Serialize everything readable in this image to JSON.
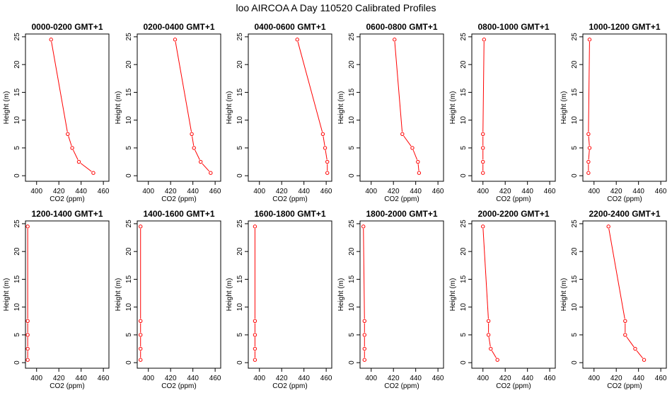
{
  "main_title": "loo AIRCOA A  Day 110520  Calibrated Profiles",
  "colors": {
    "line": "#ff0000",
    "axis": "#000000"
  },
  "chart_data": [
    {
      "type": "line",
      "title": "0000-0200 GMT+1",
      "xlabel": "CO2 (ppm)",
      "ylabel": "Height (m)",
      "xlim": [
        390,
        465
      ],
      "ylim": [
        -1,
        25.5
      ],
      "xticks": [
        400,
        420,
        440,
        460
      ],
      "yticks": [
        0,
        5,
        10,
        15,
        20,
        25
      ],
      "series": [
        {
          "x": [
            451,
            438,
            432,
            428,
            413
          ],
          "y": [
            0.5,
            2.5,
            5,
            7.5,
            24.5
          ]
        }
      ]
    },
    {
      "type": "line",
      "title": "0200-0400 GMT+1",
      "xlabel": "CO2 (ppm)",
      "ylabel": "Height (m)",
      "xlim": [
        390,
        465
      ],
      "ylim": [
        -1,
        25.5
      ],
      "xticks": [
        400,
        420,
        440,
        460
      ],
      "yticks": [
        0,
        5,
        10,
        15,
        20,
        25
      ],
      "series": [
        {
          "x": [
            456,
            447,
            441,
            439,
            424
          ],
          "y": [
            0.5,
            2.5,
            5,
            7.5,
            24.5
          ]
        }
      ]
    },
    {
      "type": "line",
      "title": "0400-0600 GMT+1",
      "xlabel": "CO2 (ppm)",
      "ylabel": "Height (m)",
      "xlim": [
        390,
        465
      ],
      "ylim": [
        -1,
        25.5
      ],
      "xticks": [
        400,
        420,
        440,
        460
      ],
      "yticks": [
        0,
        5,
        10,
        15,
        20,
        25
      ],
      "series": [
        {
          "x": [
            461,
            461,
            459,
            457,
            434
          ],
          "y": [
            0.5,
            2.5,
            5,
            7.5,
            24.5
          ]
        }
      ]
    },
    {
      "type": "line",
      "title": "0600-0800 GMT+1",
      "xlabel": "CO2 (ppm)",
      "ylabel": "Height (m)",
      "xlim": [
        390,
        465
      ],
      "ylim": [
        -1,
        25.5
      ],
      "xticks": [
        400,
        420,
        440,
        460
      ],
      "yticks": [
        0,
        5,
        10,
        15,
        20,
        25
      ],
      "series": [
        {
          "x": [
            443,
            442,
            437,
            428,
            421
          ],
          "y": [
            0.5,
            2.5,
            5,
            7.5,
            24.5
          ]
        }
      ]
    },
    {
      "type": "line",
      "title": "0800-1000 GMT+1",
      "xlabel": "CO2 (ppm)",
      "ylabel": "Height (m)",
      "xlim": [
        390,
        465
      ],
      "ylim": [
        -1,
        25.5
      ],
      "xticks": [
        400,
        420,
        440,
        460
      ],
      "yticks": [
        0,
        5,
        10,
        15,
        20,
        25
      ],
      "series": [
        {
          "x": [
            400,
            400,
            400,
            400,
            401
          ],
          "y": [
            0.5,
            2.5,
            5,
            7.5,
            24.5
          ]
        }
      ]
    },
    {
      "type": "line",
      "title": "1000-1200 GMT+1",
      "xlabel": "CO2 (ppm)",
      "ylabel": "Height (m)",
      "xlim": [
        390,
        465
      ],
      "ylim": [
        -1,
        25.5
      ],
      "xticks": [
        400,
        420,
        440,
        460
      ],
      "yticks": [
        0,
        5,
        10,
        15,
        20,
        25
      ],
      "series": [
        {
          "x": [
            395,
            395,
            396,
            395,
            396
          ],
          "y": [
            0.5,
            2.5,
            5,
            7.5,
            24.5
          ]
        }
      ]
    },
    {
      "type": "line",
      "title": "1200-1400 GMT+1",
      "xlabel": "CO2 (ppm)",
      "ylabel": "Height (m)",
      "xlim": [
        390,
        465
      ],
      "ylim": [
        -1,
        25.5
      ],
      "xticks": [
        400,
        420,
        440,
        460
      ],
      "yticks": [
        0,
        5,
        10,
        15,
        20,
        25
      ],
      "series": [
        {
          "x": [
            392,
            392,
            392,
            392,
            392
          ],
          "y": [
            0.5,
            2.5,
            5,
            7.5,
            24.5
          ]
        }
      ]
    },
    {
      "type": "line",
      "title": "1400-1600 GMT+1",
      "xlabel": "CO2 (ppm)",
      "ylabel": "Height (m)",
      "xlim": [
        390,
        465
      ],
      "ylim": [
        -1,
        25.5
      ],
      "xticks": [
        400,
        420,
        440,
        460
      ],
      "yticks": [
        0,
        5,
        10,
        15,
        20,
        25
      ],
      "series": [
        {
          "x": [
            393,
            393,
            393,
            393,
            393
          ],
          "y": [
            0.5,
            2.5,
            5,
            7.5,
            24.5
          ]
        }
      ]
    },
    {
      "type": "line",
      "title": "1600-1800 GMT+1",
      "xlabel": "CO2 (ppm)",
      "ylabel": "Height (m)",
      "xlim": [
        390,
        465
      ],
      "ylim": [
        -1,
        25.5
      ],
      "xticks": [
        400,
        420,
        440,
        460
      ],
      "yticks": [
        0,
        5,
        10,
        15,
        20,
        25
      ],
      "series": [
        {
          "x": [
            396,
            396,
            396,
            396,
            396
          ],
          "y": [
            0.5,
            2.5,
            5,
            7.5,
            24.5
          ]
        }
      ]
    },
    {
      "type": "line",
      "title": "1800-2000 GMT+1",
      "xlabel": "CO2 (ppm)",
      "ylabel": "Height (m)",
      "xlim": [
        390,
        465
      ],
      "ylim": [
        -1,
        25.5
      ],
      "xticks": [
        400,
        420,
        440,
        460
      ],
      "yticks": [
        0,
        5,
        10,
        15,
        20,
        25
      ],
      "series": [
        {
          "x": [
            394,
            394,
            394,
            394,
            393
          ],
          "y": [
            0.5,
            2.5,
            5,
            7.5,
            24.5
          ]
        }
      ]
    },
    {
      "type": "line",
      "title": "2000-2200 GMT+1",
      "xlabel": "CO2 (ppm)",
      "ylabel": "Height (m)",
      "xlim": [
        390,
        465
      ],
      "ylim": [
        -1,
        25.5
      ],
      "xticks": [
        400,
        420,
        440,
        460
      ],
      "yticks": [
        0,
        5,
        10,
        15,
        20,
        25
      ],
      "series": [
        {
          "x": [
            413,
            407,
            405,
            405,
            400
          ],
          "y": [
            0.5,
            2.5,
            5,
            7.5,
            24.5
          ]
        }
      ]
    },
    {
      "type": "line",
      "title": "2200-2400 GMT+1",
      "xlabel": "CO2 (ppm)",
      "ylabel": "Height (m)",
      "xlim": [
        390,
        465
      ],
      "ylim": [
        -1,
        25.5
      ],
      "xticks": [
        400,
        420,
        440,
        460
      ],
      "yticks": [
        0,
        5,
        10,
        15,
        20,
        25
      ],
      "series": [
        {
          "x": [
            445,
            437,
            428,
            428,
            413
          ],
          "y": [
            0.5,
            2.5,
            5,
            7.5,
            24.5
          ]
        }
      ]
    }
  ]
}
